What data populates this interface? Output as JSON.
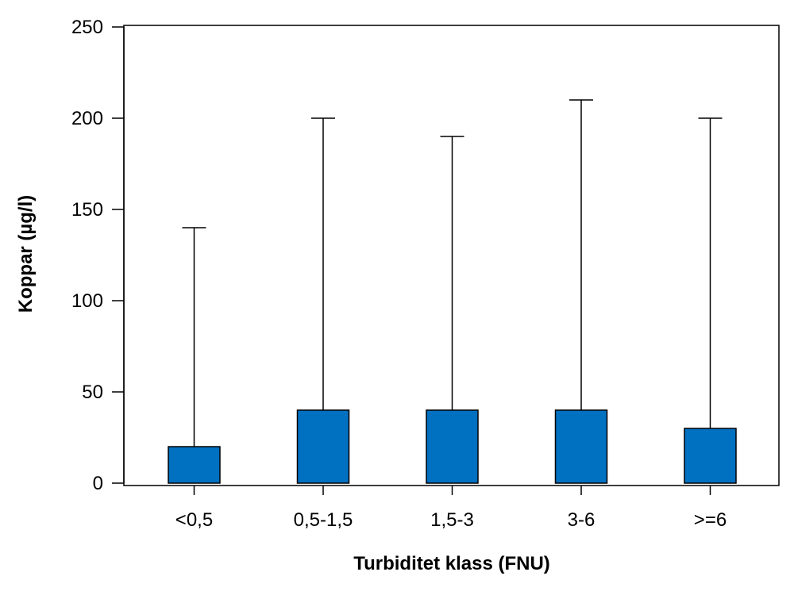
{
  "chart_data": {
    "type": "bar",
    "categories": [
      "<0,5",
      "0,5-1,5",
      "1,5-3",
      "3-6",
      ">=6"
    ],
    "values": [
      20,
      40,
      40,
      40,
      30
    ],
    "error_upper": [
      140,
      200,
      190,
      210,
      200
    ],
    "xlabel": "Turbiditet klass (FNU)",
    "ylabel": "Koppar (µg/l)",
    "ylim": [
      0,
      250
    ],
    "yticks": [
      0,
      50,
      100,
      150,
      200,
      250
    ],
    "grid": false,
    "bar_color": "#0070C0"
  }
}
